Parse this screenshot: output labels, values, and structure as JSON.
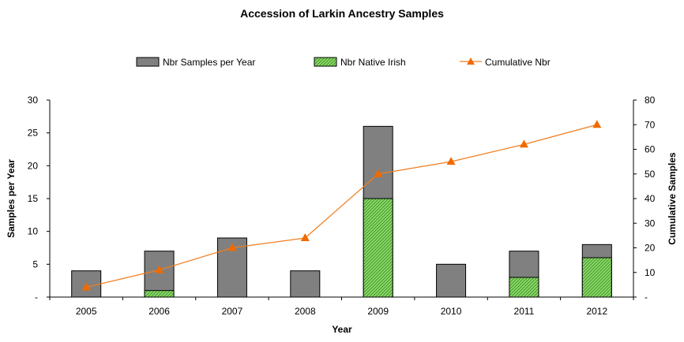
{
  "chart_data": {
    "type": "bar",
    "title": "Accession of Larkin Ancestry Samples",
    "xlabel": "Year",
    "ylabel": "Samples per Year",
    "y2label": "Cumulative Samples",
    "categories": [
      "2005",
      "2006",
      "2007",
      "2008",
      "2009",
      "2010",
      "2011",
      "2012"
    ],
    "series": [
      {
        "name": "Nbr Samples per Year",
        "type": "bar",
        "axis": "left",
        "values": [
          4,
          7,
          9,
          4,
          26,
          5,
          7,
          8
        ]
      },
      {
        "name": "Nbr Native Irish",
        "type": "bar-overlay",
        "axis": "left",
        "values": [
          0,
          1,
          0,
          0,
          15,
          0,
          3,
          6
        ]
      },
      {
        "name": "Cumulative Nbr",
        "type": "line",
        "axis": "right",
        "values": [
          4,
          11,
          20,
          24,
          50,
          55,
          62,
          70
        ]
      }
    ],
    "ylim": [
      0,
      30
    ],
    "y2lim": [
      0,
      80
    ],
    "yticks": [
      "-",
      "5",
      "10",
      "15",
      "20",
      "25",
      "30"
    ],
    "y2ticks": [
      "-",
      "10",
      "20",
      "30",
      "40",
      "50",
      "60",
      "70",
      "80"
    ],
    "legend": "top",
    "grid": false
  },
  "colors": {
    "total_bar": "#808080",
    "irish_bar": "#8fd96a",
    "irish_hatch": "#2e8a1e",
    "cumulative_line": "#f07d1e",
    "cumulative_marker": "#f06a00"
  }
}
